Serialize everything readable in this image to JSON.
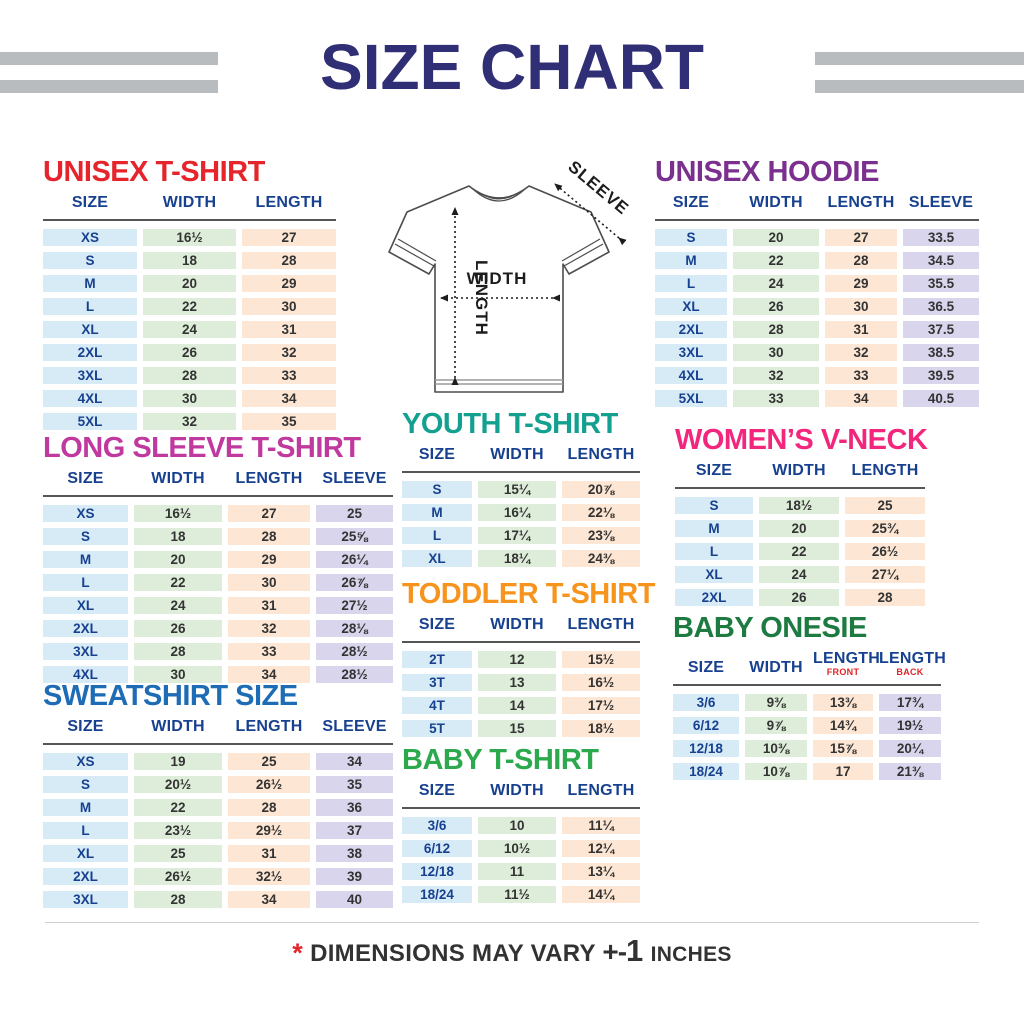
{
  "page_title": "SIZE CHART",
  "diagram": {
    "width_label": "WIDTH",
    "length_label": "LENGTH",
    "sleeve_label": "SLEEVE"
  },
  "footer": {
    "asterisk": "*",
    "text": "DIMENSIONS MAY VARY",
    "plus_minus": "+-",
    "amount": "1",
    "unit": "INCHES"
  },
  "colors": {
    "title_navy": "#302e75",
    "header_navy": "#17418f",
    "stripe_gray": "#b9bcbf",
    "cell_blue": "#d7ebf7",
    "cell_green": "#deedd9",
    "cell_peach": "#fde6d3",
    "cell_lavender": "#d9d5ec",
    "footer_red": "#e5242b"
  },
  "tables": [
    {
      "id": "unisex-tshirt",
      "title": "UNISEX T-SHIRT",
      "color": "#e5242b",
      "columns": [
        {
          "label": "SIZE",
          "key": "size"
        },
        {
          "label": "WIDTH",
          "key": "width"
        },
        {
          "label": "LENGTH",
          "key": "length"
        }
      ],
      "rows": [
        [
          "XS",
          "16½",
          "27"
        ],
        [
          "S",
          "18",
          "28"
        ],
        [
          "M",
          "20",
          "29"
        ],
        [
          "L",
          "22",
          "30"
        ],
        [
          "XL",
          "24",
          "31"
        ],
        [
          "2XL",
          "26",
          "32"
        ],
        [
          "3XL",
          "28",
          "33"
        ],
        [
          "4XL",
          "30",
          "34"
        ],
        [
          "5XL",
          "32",
          "35"
        ]
      ]
    },
    {
      "id": "unisex-hoodie",
      "title": "UNISEX HOODIE",
      "color": "#7b2f8e",
      "columns": [
        {
          "label": "SIZE",
          "key": "size"
        },
        {
          "label": "WIDTH",
          "key": "width"
        },
        {
          "label": "LENGTH",
          "key": "length"
        },
        {
          "label": "SLEEVE",
          "key": "sleeve"
        }
      ],
      "rows": [
        [
          "S",
          "20",
          "27",
          "33.5"
        ],
        [
          "M",
          "22",
          "28",
          "34.5"
        ],
        [
          "L",
          "24",
          "29",
          "35.5"
        ],
        [
          "XL",
          "26",
          "30",
          "36.5"
        ],
        [
          "2XL",
          "28",
          "31",
          "37.5"
        ],
        [
          "3XL",
          "30",
          "32",
          "38.5"
        ],
        [
          "4XL",
          "32",
          "33",
          "39.5"
        ],
        [
          "5XL",
          "33",
          "34",
          "40.5"
        ]
      ]
    },
    {
      "id": "long-sleeve-tshirt",
      "title": "LONG SLEEVE T-SHIRT",
      "color": "#c0399e",
      "columns": [
        {
          "label": "SIZE",
          "key": "size"
        },
        {
          "label": "WIDTH",
          "key": "width"
        },
        {
          "label": "LENGTH",
          "key": "length"
        },
        {
          "label": "SLEEVE",
          "key": "sleeve"
        }
      ],
      "rows": [
        [
          "XS",
          "16½",
          "27",
          "25"
        ],
        [
          "S",
          "18",
          "28",
          "25⅝"
        ],
        [
          "M",
          "20",
          "29",
          "26¼"
        ],
        [
          "L",
          "22",
          "30",
          "26⅞"
        ],
        [
          "XL",
          "24",
          "31",
          "27½"
        ],
        [
          "2XL",
          "26",
          "32",
          "28⅛"
        ],
        [
          "3XL",
          "28",
          "33",
          "28½"
        ],
        [
          "4XL",
          "30",
          "34",
          "28½"
        ]
      ]
    },
    {
      "id": "youth-tshirt",
      "title": "YOUTH T-SHIRT",
      "color": "#13a08f",
      "columns": [
        {
          "label": "SIZE",
          "key": "size"
        },
        {
          "label": "WIDTH",
          "key": "width"
        },
        {
          "label": "LENGTH",
          "key": "length"
        }
      ],
      "rows": [
        [
          "S",
          "15¼",
          "20⅞"
        ],
        [
          "M",
          "16¼",
          "22⅛"
        ],
        [
          "L",
          "17¼",
          "23⅜"
        ],
        [
          "XL",
          "18¼",
          "24⅜"
        ]
      ]
    },
    {
      "id": "womens-vneck",
      "title": "WOMEN’S V-NECK",
      "color": "#f2267c",
      "columns": [
        {
          "label": "SIZE",
          "key": "size"
        },
        {
          "label": "WIDTH",
          "key": "width"
        },
        {
          "label": "LENGTH",
          "key": "length"
        }
      ],
      "rows": [
        [
          "S",
          "18½",
          "25"
        ],
        [
          "M",
          "20",
          "25¾"
        ],
        [
          "L",
          "22",
          "26½"
        ],
        [
          "XL",
          "24",
          "27¼"
        ],
        [
          "2XL",
          "26",
          "28"
        ]
      ]
    },
    {
      "id": "toddler-tshirt",
      "title": "TODDLER T-SHIRT",
      "color": "#f7941d",
      "columns": [
        {
          "label": "SIZE",
          "key": "size"
        },
        {
          "label": "WIDTH",
          "key": "width"
        },
        {
          "label": "LENGTH",
          "key": "length"
        }
      ],
      "rows": [
        [
          "2T",
          "12",
          "15½"
        ],
        [
          "3T",
          "13",
          "16½"
        ],
        [
          "4T",
          "14",
          "17½"
        ],
        [
          "5T",
          "15",
          "18½"
        ]
      ]
    },
    {
      "id": "baby-onesie",
      "title": "BABY ONESIE",
      "color": "#1d7a40",
      "columns": [
        {
          "label": "SIZE",
          "key": "size"
        },
        {
          "label": "WIDTH",
          "key": "width"
        },
        {
          "label": "LENGTH",
          "sub": "FRONT",
          "key": "length-front"
        },
        {
          "label": "LENGTH",
          "sub": "BACK",
          "key": "length-back"
        }
      ],
      "rows": [
        [
          "3/6",
          "9⅜",
          "13⅜",
          "17¾"
        ],
        [
          "6/12",
          "9⅞",
          "14¾",
          "19½"
        ],
        [
          "12/18",
          "10⅜",
          "15⅞",
          "20¼"
        ],
        [
          "18/24",
          "10⅞",
          "17",
          "21⅜"
        ]
      ]
    },
    {
      "id": "sweatshirt",
      "title": "SWEATSHIRT SIZE",
      "color": "#1d6cb5",
      "columns": [
        {
          "label": "SIZE",
          "key": "size"
        },
        {
          "label": "WIDTH",
          "key": "width"
        },
        {
          "label": "LENGTH",
          "key": "length"
        },
        {
          "label": "SLEEVE",
          "key": "sleeve"
        }
      ],
      "rows": [
        [
          "XS",
          "19",
          "25",
          "34"
        ],
        [
          "S",
          "20½",
          "26½",
          "35"
        ],
        [
          "M",
          "22",
          "28",
          "36"
        ],
        [
          "L",
          "23½",
          "29½",
          "37"
        ],
        [
          "XL",
          "25",
          "31",
          "38"
        ],
        [
          "2XL",
          "26½",
          "32½",
          "39"
        ],
        [
          "3XL",
          "28",
          "34",
          "40"
        ]
      ]
    },
    {
      "id": "baby-tshirt",
      "title": "BABY T-SHIRT",
      "color": "#2ca94c",
      "columns": [
        {
          "label": "SIZE",
          "key": "size"
        },
        {
          "label": "WIDTH",
          "key": "width"
        },
        {
          "label": "LENGTH",
          "key": "length"
        }
      ],
      "rows": [
        [
          "3/6",
          "10",
          "11¼"
        ],
        [
          "6/12",
          "10½",
          "12¼"
        ],
        [
          "12/18",
          "11",
          "13¼"
        ],
        [
          "18/24",
          "11½",
          "14¼"
        ]
      ]
    }
  ]
}
